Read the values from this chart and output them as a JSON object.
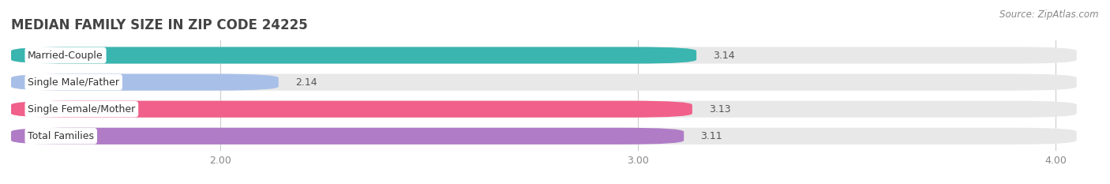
{
  "title": "MEDIAN FAMILY SIZE IN ZIP CODE 24225",
  "source": "Source: ZipAtlas.com",
  "categories": [
    "Married-Couple",
    "Single Male/Father",
    "Single Female/Mother",
    "Total Families"
  ],
  "values": [
    3.14,
    2.14,
    3.13,
    3.11
  ],
  "bar_colors": [
    "#3ab5b0",
    "#a8c0e8",
    "#f0608a",
    "#b07cc6"
  ],
  "bar_bg_color": "#e8e8e8",
  "xlim_left": 1.5,
  "xlim_right": 4.05,
  "data_min": 1.5,
  "data_max": 4.05,
  "xticks": [
    2.0,
    3.0,
    4.0
  ],
  "xtick_labels": [
    "2.00",
    "3.00",
    "4.00"
  ],
  "background_color": "#ffffff",
  "title_fontsize": 12,
  "label_fontsize": 9,
  "value_fontsize": 9,
  "source_fontsize": 8.5,
  "bar_height": 0.62,
  "bar_gap": 0.38
}
